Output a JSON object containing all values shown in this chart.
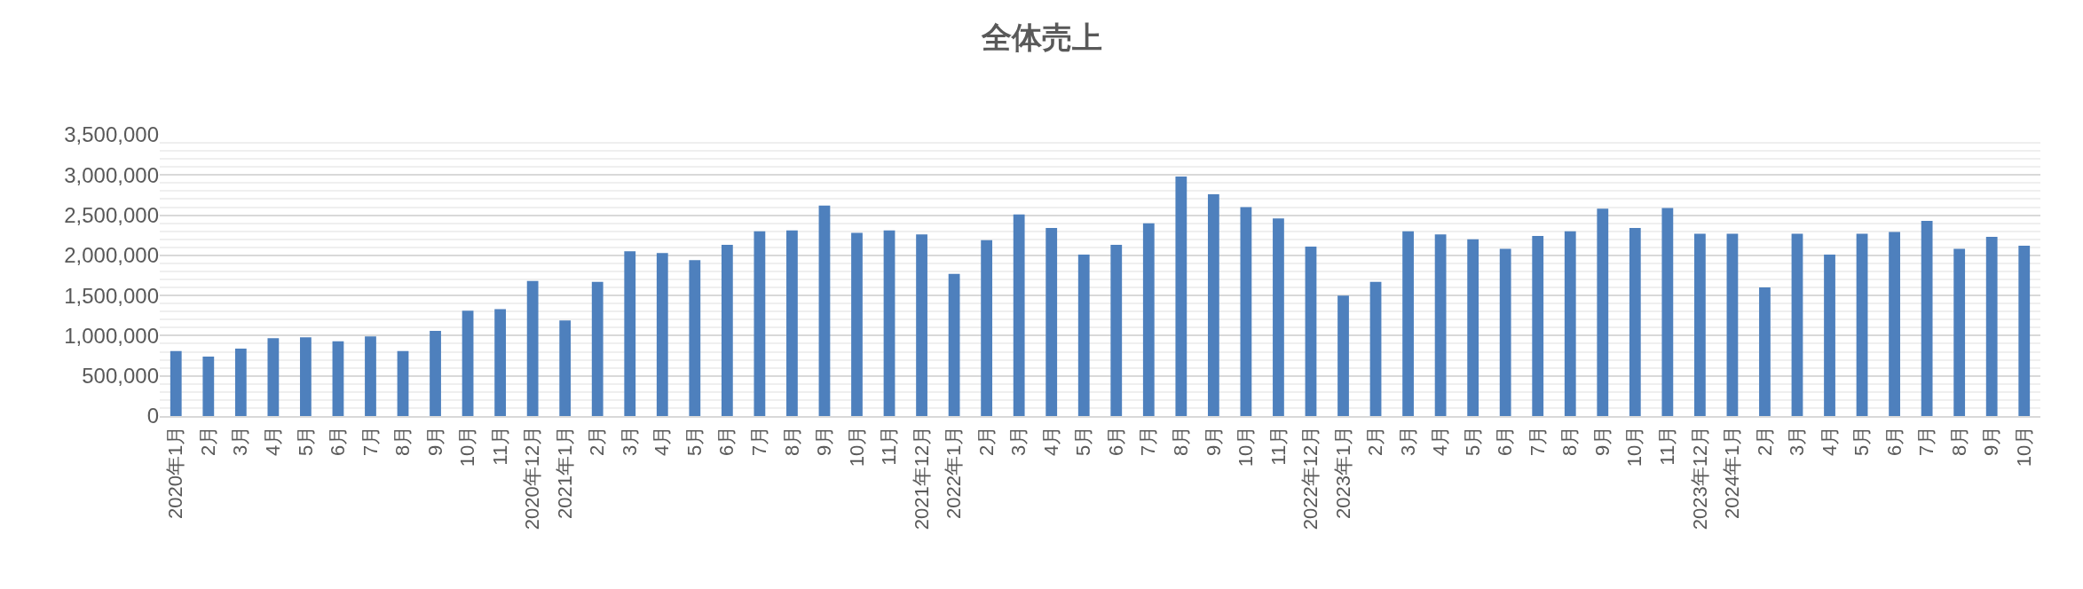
{
  "chart_data": {
    "type": "bar",
    "title": "全体売上",
    "categories": [
      "2020年1月",
      "2月",
      "3月",
      "4月",
      "5月",
      "6月",
      "7月",
      "8月",
      "9月",
      "10月",
      "11月",
      "2020年12月",
      "2021年1月",
      "2月",
      "3月",
      "4月",
      "5月",
      "6月",
      "7月",
      "8月",
      "9月",
      "10月",
      "11月",
      "2021年12月",
      "2022年1月",
      "2月",
      "3月",
      "4月",
      "5月",
      "6月",
      "7月",
      "8月",
      "9月",
      "10月",
      "11月",
      "2022年12月",
      "2023年1月",
      "2月",
      "3月",
      "4月",
      "5月",
      "6月",
      "7月",
      "8月",
      "9月",
      "10月",
      "11月",
      "2023年12月",
      "2024年1月",
      "2月",
      "3月",
      "4月",
      "5月",
      "6月",
      "7月",
      "8月",
      "9月",
      "10月"
    ],
    "series": [
      {
        "color": "#4e80bd",
        "values": [
          810000,
          740000,
          840000,
          970000,
          980000,
          930000,
          990000,
          810000,
          1060000,
          1310000,
          1330000,
          1680000,
          1190000,
          1670000,
          2050000,
          2030000,
          1940000,
          2130000,
          2300000,
          2310000,
          2620000,
          2280000,
          2310000,
          2260000,
          1770000,
          2190000,
          2510000,
          2340000,
          2010000,
          2130000,
          2400000,
          2980000,
          2760000,
          2600000,
          2460000,
          2110000,
          1500000,
          1670000,
          2300000,
          2260000,
          2200000,
          2080000,
          2240000,
          2300000,
          2580000,
          2340000,
          2590000,
          2270000,
          2270000,
          1600000,
          2270000,
          2010000,
          2270000,
          2290000,
          2430000,
          2080000,
          2230000,
          2120000
        ]
      }
    ],
    "ylim": [
      0,
      3500000
    ],
    "yticks": [
      {
        "value": 0,
        "label": "0"
      },
      {
        "value": 500000,
        "label": "500,000"
      },
      {
        "value": 1000000,
        "label": "1,000,000"
      },
      {
        "value": 1500000,
        "label": "1,500,000"
      },
      {
        "value": 2000000,
        "label": "2,000,000"
      },
      {
        "value": 2500000,
        "label": "2,500,000"
      },
      {
        "value": 3000000,
        "label": "3,000,000"
      },
      {
        "value": 3500000,
        "label": "3,500,000"
      }
    ],
    "grid": "y"
  }
}
